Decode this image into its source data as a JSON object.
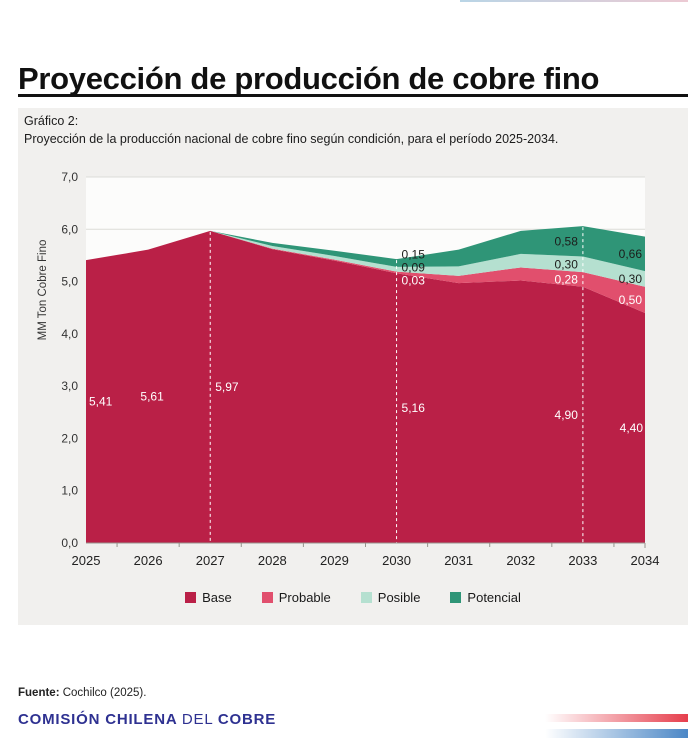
{
  "header": {
    "title": "Proyección de producción de cobre fino"
  },
  "figure": {
    "caption_label": "Gráfico 2:",
    "caption": "Proyección de la producción nacional de cobre fino según condición, para el período 2025-2034."
  },
  "chart_data": {
    "type": "area",
    "stacked": true,
    "x": [
      2025,
      2026,
      2027,
      2028,
      2029,
      2030,
      2031,
      2032,
      2033,
      2034
    ],
    "series": [
      {
        "name": "Base",
        "color": "#ba2047",
        "label_color": "#ffffff",
        "values": [
          5.41,
          5.61,
          5.97,
          5.62,
          5.4,
          5.16,
          4.97,
          5.02,
          4.9,
          4.4
        ]
      },
      {
        "name": "Probable",
        "color": "#e14f6d",
        "label_color": "#ffffff",
        "values": [
          0,
          0,
          0,
          0.01,
          0.02,
          0.03,
          0.14,
          0.25,
          0.28,
          0.5
        ]
      },
      {
        "name": "Posible",
        "color": "#b5e0d0",
        "label_color": "#1d1d1b",
        "values": [
          0,
          0,
          0,
          0.05,
          0.07,
          0.09,
          0.18,
          0.26,
          0.3,
          0.3
        ]
      },
      {
        "name": "Potencial",
        "color": "#2f9577",
        "label_color": "#1d1d1b",
        "values": [
          0,
          0,
          0,
          0.06,
          0.1,
          0.15,
          0.32,
          0.44,
          0.58,
          0.66
        ]
      }
    ],
    "ylabel": "MM Ton Cobre Fino",
    "xlabel": "",
    "ylim": [
      0,
      7
    ],
    "ytick_labels": [
      "0,0",
      "1,0",
      "2,0",
      "3,0",
      "4,0",
      "5,0",
      "6,0",
      "7,0"
    ],
    "grid": true,
    "legend_position": "bottom",
    "dashed_guide_years": [
      2027,
      2030,
      2033
    ],
    "base_value_labels": [
      {
        "year": 2025,
        "text": "5,41"
      },
      {
        "year": 2026,
        "text": "5,61"
      },
      {
        "year": 2027,
        "text": "5,97"
      },
      {
        "year": 2030,
        "text": "5,16"
      },
      {
        "year": 2033,
        "text": "4,90"
      },
      {
        "year": 2034,
        "text": "4,40"
      }
    ],
    "band_value_labels": [
      {
        "year": 2030,
        "labels": [
          {
            "series": "Potencial",
            "text": "0,15"
          },
          {
            "series": "Posible",
            "text": "0,09"
          },
          {
            "series": "Probable",
            "text": "0,03"
          }
        ]
      },
      {
        "year": 2033,
        "labels": [
          {
            "series": "Potencial",
            "text": "0,58"
          },
          {
            "series": "Posible",
            "text": "0,30"
          },
          {
            "series": "Probable",
            "text": "0,28"
          }
        ]
      },
      {
        "year": 2034,
        "labels": [
          {
            "series": "Potencial",
            "text": "0,66"
          },
          {
            "series": "Posible",
            "text": "0,30"
          },
          {
            "series": "Probable",
            "text": "0,50"
          }
        ]
      }
    ]
  },
  "footer": {
    "source_label": "Fuente:",
    "source_text": " Cochilco (2025).",
    "logo_part1": "COMISIÓN CHILENA ",
    "logo_part2": "DEL ",
    "logo_part3": "COBRE"
  },
  "colors": {
    "accent_crimson": "#ba2047",
    "accent_pink": "#e14f6d",
    "accent_mint": "#b5e0d0",
    "accent_teal": "#2f9577",
    "logo_blue": "#2e3191",
    "stripe_red": "#e63e4c",
    "stripe_blue": "#4b87c6",
    "panel_bg": "#f1f0ee"
  }
}
